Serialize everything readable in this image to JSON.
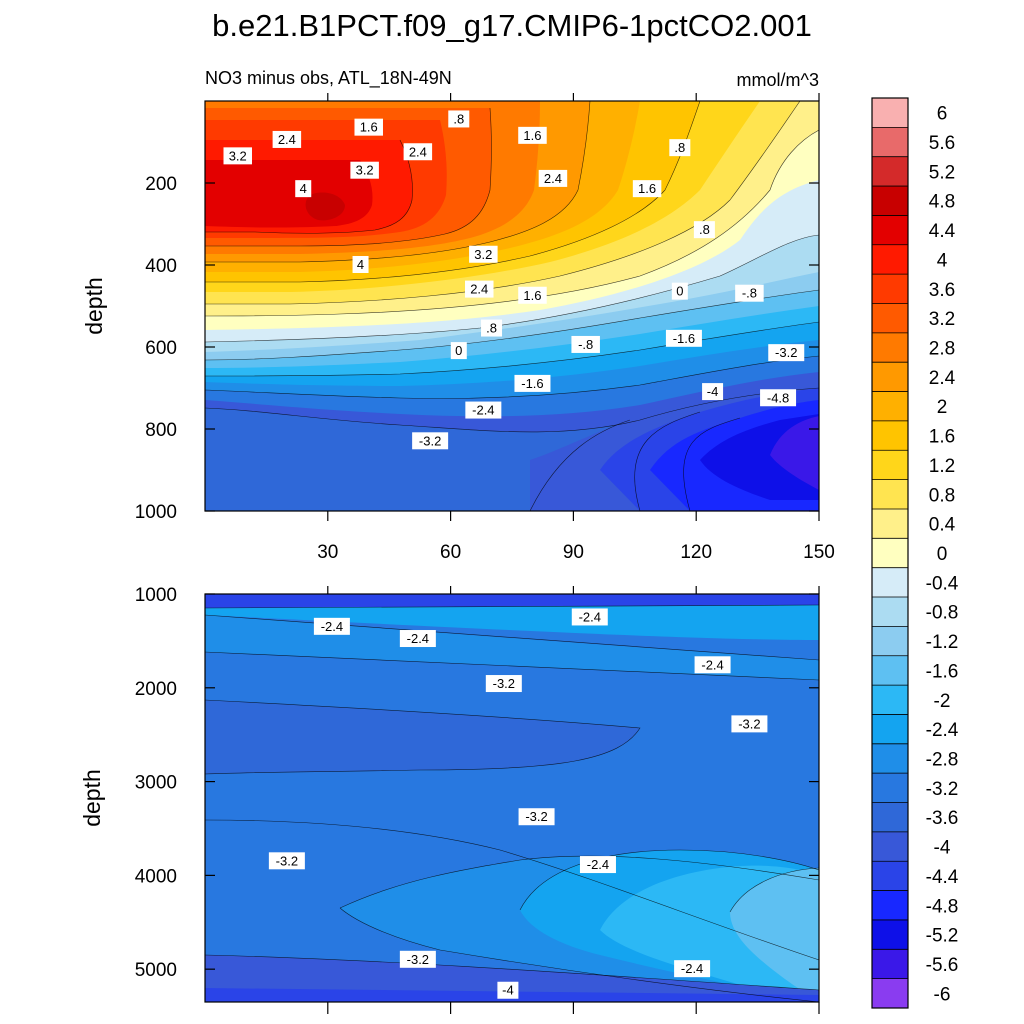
{
  "figure": {
    "title": "b.e21.B1PCT.f09_g17.CMIP6-1pctCO2.001",
    "left_string": "NO3 minus obs, ATL_18N-49N",
    "right_string": "mmol/m^3"
  },
  "colorbar": {
    "levels": [
      "6",
      "5.6",
      "5.2",
      "4.8",
      "4.4",
      "4",
      "3.6",
      "3.2",
      "2.8",
      "2.4",
      "2",
      "1.6",
      "1.2",
      "0.8",
      "0.4",
      "0",
      "-0.4",
      "-0.8",
      "-1.2",
      "-1.6",
      "-2",
      "-2.4",
      "-2.8",
      "-3.2",
      "-3.6",
      "-4",
      "-4.4",
      "-4.8",
      "-5.2",
      "-5.6",
      "-6"
    ],
    "colors": [
      "#f9b0b0",
      "#e86a6a",
      "#d42a2a",
      "#c80000",
      "#e30000",
      "#ff1a00",
      "#ff3a00",
      "#ff5a00",
      "#ff7a00",
      "#ff9900",
      "#ffb000",
      "#ffc400",
      "#ffd61a",
      "#ffe450",
      "#fff08a",
      "#ffffc0",
      "#d6ecf8",
      "#acdcf2",
      "#8cccf0",
      "#5ec0f2",
      "#2cb8f5",
      "#14a4f0",
      "#1f8ee8",
      "#2878e0",
      "#2f68d8",
      "#3858d8",
      "#2a44e8",
      "#1828ff",
      "#0e10e8",
      "#3a18e8",
      "#8a3cf0"
    ]
  },
  "chart_data": [
    {
      "type": "contour",
      "panel": "upper",
      "title": "NO3 minus obs, ATL_18N-49N",
      "units": "mmol/m^3",
      "xlabel": "",
      "ylabel": "depth",
      "xlim": [
        0,
        150
      ],
      "ylim": [
        1000,
        0
      ],
      "xticks": [
        30,
        60,
        90,
        120,
        150
      ],
      "yticks": [
        200,
        400,
        600,
        800,
        1000
      ],
      "contour_labels": [
        {
          "text": "3.2",
          "x": 8,
          "y": 135
        },
        {
          "text": "2.4",
          "x": 20,
          "y": 95
        },
        {
          "text": "1.6",
          "x": 40,
          "y": 65
        },
        {
          "text": "2.4",
          "x": 52,
          "y": 125
        },
        {
          "text": ".8",
          "x": 62,
          "y": 45
        },
        {
          "text": "1.6",
          "x": 80,
          "y": 85
        },
        {
          "text": ".8",
          "x": 116,
          "y": 115
        },
        {
          "text": "4",
          "x": 24,
          "y": 215
        },
        {
          "text": "3.2",
          "x": 39,
          "y": 170
        },
        {
          "text": "2.4",
          "x": 85,
          "y": 190
        },
        {
          "text": "1.6",
          "x": 108,
          "y": 215
        },
        {
          "text": "3.2",
          "x": 68,
          "y": 375
        },
        {
          "text": ".8",
          "x": 122,
          "y": 315
        },
        {
          "text": "4",
          "x": 38,
          "y": 400
        },
        {
          "text": "2.4",
          "x": 67,
          "y": 460
        },
        {
          "text": "1.6",
          "x": 80,
          "y": 475
        },
        {
          "text": "0",
          "x": 116,
          "y": 465
        },
        {
          "text": "-.8",
          "x": 133,
          "y": 470
        },
        {
          "text": ".8",
          "x": 70,
          "y": 555
        },
        {
          "text": "0",
          "x": 62,
          "y": 610
        },
        {
          "text": "-.8",
          "x": 93,
          "y": 595
        },
        {
          "text": "-1.6",
          "x": 117,
          "y": 580
        },
        {
          "text": "-3.2",
          "x": 142,
          "y": 615
        },
        {
          "text": "-1.6",
          "x": 80,
          "y": 690
        },
        {
          "text": "-4",
          "x": 124,
          "y": 710
        },
        {
          "text": "-4.8",
          "x": 140,
          "y": 725
        },
        {
          "text": "-2.4",
          "x": 68,
          "y": 755
        },
        {
          "text": "-3.2",
          "x": 55,
          "y": 830
        }
      ]
    },
    {
      "type": "contour",
      "panel": "lower",
      "ylabel": "depth",
      "xlim": [
        0,
        150
      ],
      "ylim": [
        5350,
        1000
      ],
      "xticks": [
        30,
        60,
        90,
        120,
        150
      ],
      "yticks": [
        1000,
        2000,
        3000,
        4000,
        5000
      ],
      "contour_labels": [
        {
          "text": "-2.4",
          "x": 31,
          "y": 1350
        },
        {
          "text": "-2.4",
          "x": 52,
          "y": 1480
        },
        {
          "text": "-2.4",
          "x": 94,
          "y": 1250
        },
        {
          "text": "-2.4",
          "x": 124,
          "y": 1760
        },
        {
          "text": "-3.2",
          "x": 73,
          "y": 1960
        },
        {
          "text": "-3.2",
          "x": 133,
          "y": 2390
        },
        {
          "text": "-3.2",
          "x": 81,
          "y": 3380
        },
        {
          "text": "-2.4",
          "x": 96,
          "y": 3890
        },
        {
          "text": "-3.2",
          "x": 20,
          "y": 3850
        },
        {
          "text": "-3.2",
          "x": 52,
          "y": 4900
        },
        {
          "text": "-2.4",
          "x": 119,
          "y": 5000
        },
        {
          "text": "-4",
          "x": 74,
          "y": 5230
        }
      ]
    }
  ],
  "upper": {
    "ylabel": "depth",
    "xticks": [
      "30",
      "60",
      "90",
      "120",
      "150"
    ],
    "yticks": [
      "200",
      "400",
      "600",
      "800",
      "1000"
    ]
  },
  "lower": {
    "ylabel": "depth",
    "yticks": [
      "1000",
      "2000",
      "3000",
      "4000",
      "5000"
    ]
  }
}
